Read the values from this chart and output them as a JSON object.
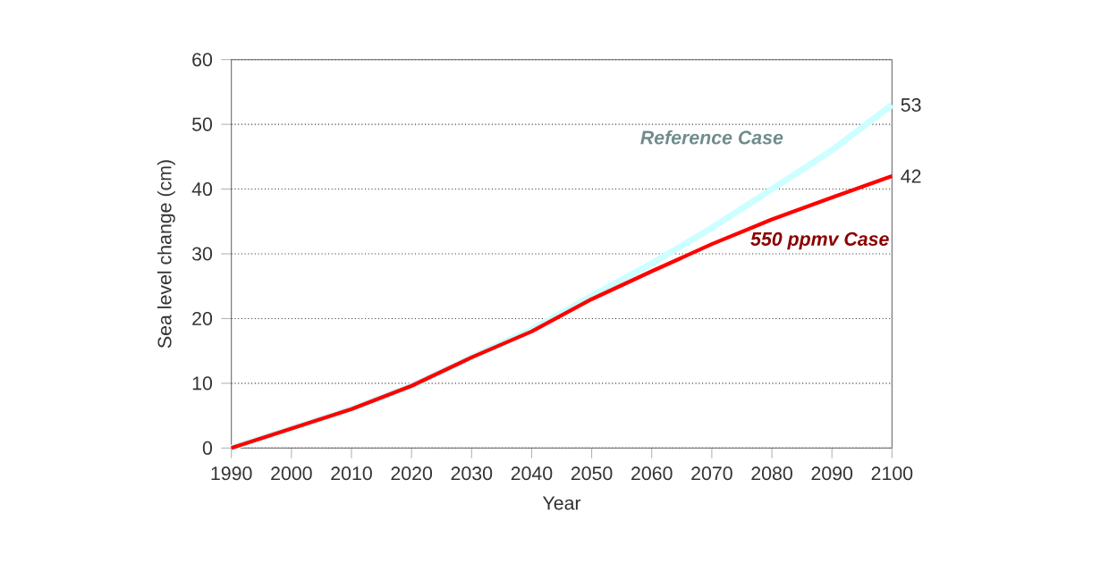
{
  "chart_data": {
    "type": "line",
    "xlabel": "Year",
    "ylabel": "Sea level change (cm)",
    "x": [
      1990,
      2000,
      2010,
      2020,
      2030,
      2040,
      2050,
      2060,
      2070,
      2080,
      2090,
      2100
    ],
    "series": [
      {
        "name": "Reference Case",
        "color": "#ccffff",
        "values": [
          0,
          3,
          6,
          9.6,
          14,
          18.3,
          23.5,
          28.5,
          34,
          40,
          46,
          53
        ],
        "value_labels": [
          null,
          null,
          null,
          null,
          null,
          null,
          null,
          null,
          null,
          null,
          null,
          "53"
        ]
      },
      {
        "name": "550 ppmv Case",
        "color": "#ff0000",
        "values": [
          0,
          3,
          6,
          9.6,
          14,
          18,
          23,
          27.3,
          31.5,
          35.3,
          38.7,
          42
        ],
        "value_labels": [
          null,
          null,
          null,
          null,
          null,
          null,
          null,
          null,
          null,
          null,
          null,
          "42"
        ]
      }
    ],
    "xlim": [
      1990,
      2100
    ],
    "ylim": [
      0,
      60
    ],
    "xticks": [
      1990,
      2000,
      2010,
      2020,
      2030,
      2040,
      2050,
      2060,
      2070,
      2080,
      2090,
      2100
    ],
    "yticks": [
      0,
      10,
      20,
      30,
      40,
      50,
      60
    ],
    "grid": "y",
    "marker": "none",
    "line_style": "solid",
    "legend": false
  }
}
